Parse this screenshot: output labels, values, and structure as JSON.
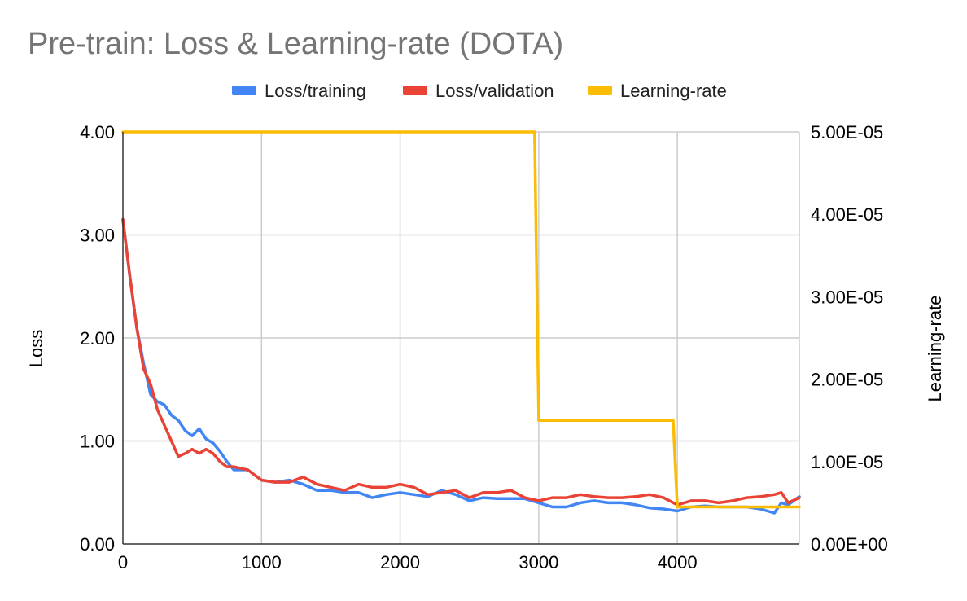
{
  "chart_data": {
    "type": "line",
    "title": "Pre-train: Loss & Learning-rate (DOTA)",
    "xlabel": "",
    "ylabel": "Loss",
    "y2label": "Learning-rate",
    "xlim": [
      0,
      4880
    ],
    "ylim": [
      0,
      4
    ],
    "y2lim": [
      0,
      5e-05
    ],
    "xticks": [
      "0",
      "1000",
      "2000",
      "3000",
      "4000"
    ],
    "yticks": [
      "0.00",
      "1.00",
      "2.00",
      "3.00",
      "4.00"
    ],
    "y2ticks": [
      "0.00E+00",
      "1.00E-05",
      "2.00E-05",
      "3.00E-05",
      "4.00E-05",
      "5.00E-05"
    ],
    "grid": true,
    "legend_position": "top",
    "series": [
      {
        "name": "Loss/training",
        "axis": "left",
        "color": "#4285f4",
        "x": [
          0,
          50,
          100,
          150,
          200,
          250,
          300,
          350,
          400,
          450,
          500,
          550,
          600,
          650,
          700,
          750,
          800,
          900,
          1000,
          1100,
          1200,
          1300,
          1400,
          1500,
          1600,
          1700,
          1800,
          1900,
          2000,
          2100,
          2200,
          2300,
          2400,
          2500,
          2600,
          2700,
          2800,
          2900,
          3000,
          3100,
          3200,
          3300,
          3400,
          3500,
          3600,
          3700,
          3800,
          3900,
          4000,
          4100,
          4200,
          4300,
          4400,
          4500,
          4600,
          4700,
          4750,
          4800,
          4880
        ],
        "y": [
          3.15,
          2.6,
          2.1,
          1.75,
          1.45,
          1.38,
          1.35,
          1.25,
          1.2,
          1.1,
          1.05,
          1.12,
          1.02,
          0.98,
          0.9,
          0.8,
          0.72,
          0.72,
          0.62,
          0.6,
          0.62,
          0.58,
          0.52,
          0.52,
          0.5,
          0.5,
          0.45,
          0.48,
          0.5,
          0.48,
          0.46,
          0.52,
          0.48,
          0.42,
          0.45,
          0.44,
          0.44,
          0.44,
          0.4,
          0.36,
          0.36,
          0.4,
          0.42,
          0.4,
          0.4,
          0.38,
          0.35,
          0.34,
          0.32,
          0.36,
          0.37,
          0.36,
          0.36,
          0.36,
          0.34,
          0.3,
          0.4,
          0.38,
          0.46
        ]
      },
      {
        "name": "Loss/validation",
        "axis": "left",
        "color": "#ea4335",
        "x": [
          0,
          50,
          100,
          150,
          200,
          250,
          300,
          350,
          400,
          450,
          500,
          550,
          600,
          650,
          700,
          750,
          800,
          900,
          1000,
          1100,
          1200,
          1300,
          1400,
          1500,
          1600,
          1700,
          1800,
          1900,
          2000,
          2100,
          2200,
          2300,
          2400,
          2500,
          2600,
          2700,
          2800,
          2900,
          3000,
          3100,
          3200,
          3300,
          3400,
          3500,
          3600,
          3700,
          3800,
          3900,
          4000,
          4100,
          4200,
          4300,
          4400,
          4500,
          4600,
          4700,
          4750,
          4800,
          4880
        ],
        "y": [
          3.15,
          2.6,
          2.1,
          1.7,
          1.55,
          1.3,
          1.15,
          1.0,
          0.85,
          0.88,
          0.92,
          0.88,
          0.92,
          0.88,
          0.8,
          0.75,
          0.75,
          0.72,
          0.62,
          0.6,
          0.6,
          0.65,
          0.58,
          0.55,
          0.52,
          0.58,
          0.55,
          0.55,
          0.58,
          0.55,
          0.48,
          0.5,
          0.52,
          0.45,
          0.5,
          0.5,
          0.52,
          0.45,
          0.42,
          0.45,
          0.45,
          0.48,
          0.46,
          0.45,
          0.45,
          0.46,
          0.48,
          0.45,
          0.38,
          0.42,
          0.42,
          0.4,
          0.42,
          0.45,
          0.46,
          0.48,
          0.5,
          0.4,
          0.45
        ]
      },
      {
        "name": "Learning-rate",
        "axis": "right",
        "color": "#fbbc04",
        "x": [
          0,
          2970,
          3000,
          3970,
          4000,
          4880
        ],
        "y": [
          5e-05,
          5e-05,
          1.5e-05,
          1.5e-05,
          4.5e-06,
          4.5e-06
        ]
      }
    ]
  }
}
